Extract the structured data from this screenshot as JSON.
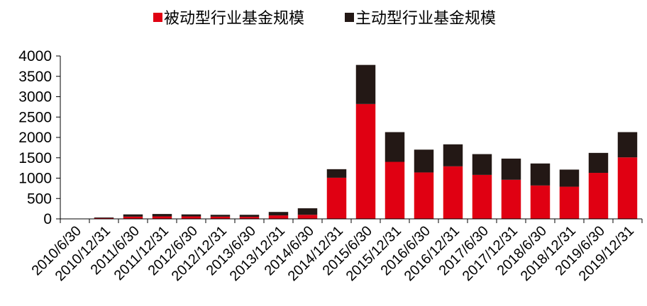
{
  "chart_data": {
    "type": "bar",
    "stacked": true,
    "categories": [
      "2010/6/30",
      "2010/12/31",
      "2011/6/30",
      "2011/12/31",
      "2012/6/30",
      "2012/12/31",
      "2013/6/30",
      "2013/12/31",
      "2014/6/30",
      "2014/12/31",
      "2015/6/30",
      "2015/12/31",
      "2016/6/30",
      "2016/12/31",
      "2017/6/30",
      "2017/12/31",
      "2018/6/30",
      "2018/12/31",
      "2019/6/30",
      "2019/12/31"
    ],
    "series": [
      {
        "name": "被动型行业基金规模",
        "color": "#e00012",
        "values": [
          2,
          20,
          55,
          60,
          60,
          55,
          50,
          85,
          100,
          1010,
          2820,
          1400,
          1140,
          1290,
          1080,
          960,
          820,
          790,
          1130,
          1510
        ]
      },
      {
        "name": "主动型行业基金规模",
        "color": "#231815",
        "values": [
          3,
          15,
          55,
          60,
          50,
          45,
          50,
          85,
          160,
          210,
          960,
          730,
          560,
          540,
          510,
          520,
          540,
          420,
          490,
          620
        ]
      }
    ],
    "yticks": [
      "0",
      "500",
      "1000",
      "1500",
      "2000",
      "2500",
      "3000",
      "3500",
      "4000"
    ],
    "ylim": [
      0,
      4000
    ],
    "grid": false,
    "legend_position": "top"
  }
}
